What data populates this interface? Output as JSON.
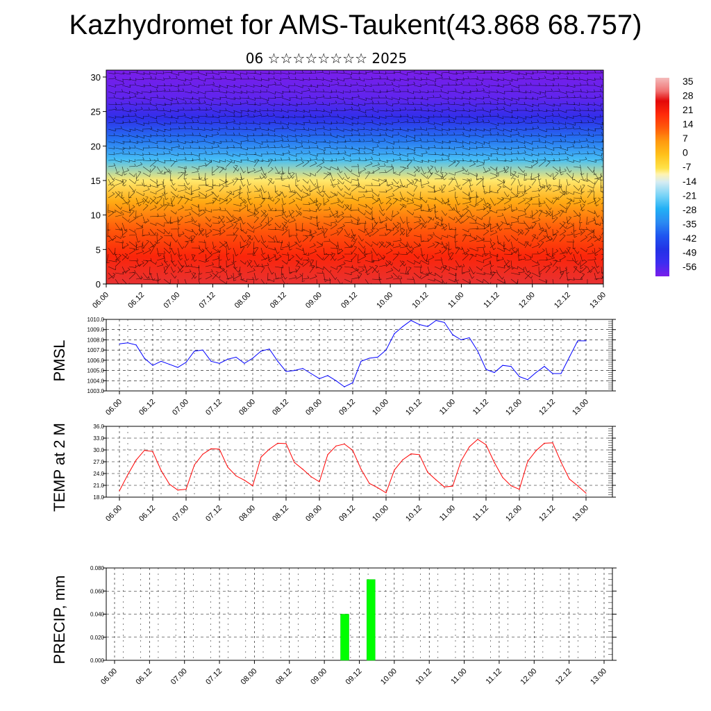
{
  "title": "Kazhydromet for AMS-Taukent(43.868 68.757)",
  "subtitle": "06 ☆☆☆☆☆☆☆☆ 2025",
  "colors": {
    "pmsl_line": "#0000ff",
    "temp_line": "#ff0000",
    "precip_bar": "#00ff00"
  },
  "chart_data": [
    {
      "type": "heatmap",
      "name": "cross-section",
      "title": "",
      "xlabel": "",
      "ylabel": "",
      "x_ticks": [
        "06.00",
        "06.12",
        "07.00",
        "07.12",
        "08.00",
        "08.12",
        "09.00",
        "09.12",
        "10.00",
        "10.12",
        "11.00",
        "11.12",
        "12.00",
        "12.12",
        "13.00"
      ],
      "y_ticks": [
        0,
        5,
        10,
        15,
        20,
        25,
        30
      ],
      "ylim": [
        0,
        31
      ],
      "overlay": "wind barbs",
      "colorbar_labels": [
        "35",
        "28",
        "21",
        "14",
        "7",
        "0",
        "-7",
        "-14",
        "-21",
        "-28",
        "-35",
        "-42",
        "-49",
        "-56"
      ],
      "colorbar_range": [
        -63,
        40
      ],
      "temperature_profile": [
        {
          "level": 0,
          "value": 30
        },
        {
          "level": 4,
          "value": 22
        },
        {
          "level": 8,
          "value": 14
        },
        {
          "level": 12,
          "value": 4
        },
        {
          "level": 15,
          "value": -8
        },
        {
          "level": 18,
          "value": -25
        },
        {
          "level": 21,
          "value": -38
        },
        {
          "level": 24,
          "value": -52
        },
        {
          "level": 27,
          "value": -60
        },
        {
          "level": 31,
          "value": -63
        }
      ]
    },
    {
      "type": "line",
      "name": "PMSL",
      "ylabel": "PMSL",
      "ylim": [
        1003.0,
        1010.0
      ],
      "y_ticks": [
        "1003.0",
        "1004.0",
        "1005.0",
        "1006.0",
        "1007.0",
        "1008.0",
        "1009.0",
        "1010.0"
      ],
      "x_ticks": [
        "06.00",
        "06.12",
        "07.00",
        "07.12",
        "08.00",
        "08.12",
        "09.00",
        "09.12",
        "10.00",
        "10.12",
        "11.00",
        "11.12",
        "12.00",
        "12.12",
        "13.00"
      ],
      "x_hours": [
        0,
        3,
        6,
        9,
        12,
        15,
        18,
        21,
        24,
        27,
        30,
        33,
        36,
        39,
        42,
        45,
        48,
        51,
        54,
        57,
        60,
        63,
        66,
        69,
        72,
        75,
        78,
        81,
        84,
        87,
        90,
        93,
        96,
        99,
        102,
        105,
        108,
        111,
        114,
        117,
        120,
        123,
        126,
        129,
        132,
        135,
        138,
        141,
        144,
        147,
        150,
        153,
        156,
        159,
        162,
        165,
        168
      ],
      "values": [
        1007.6,
        1007.7,
        1007.5,
        1006.2,
        1005.5,
        1005.9,
        1005.6,
        1005.3,
        1005.8,
        1006.9,
        1007.0,
        1005.9,
        1005.7,
        1006.1,
        1006.3,
        1005.7,
        1006.2,
        1006.9,
        1007.1,
        1005.9,
        1004.9,
        1005.0,
        1005.2,
        1004.7,
        1004.2,
        1004.5,
        1004.0,
        1003.4,
        1003.8,
        1005.9,
        1006.2,
        1006.3,
        1007.0,
        1008.6,
        1009.3,
        1009.9,
        1009.5,
        1009.3,
        1009.9,
        1009.7,
        1008.5,
        1008.0,
        1008.2,
        1006.9,
        1005.1,
        1004.8,
        1005.5,
        1005.4,
        1004.4,
        1004.1,
        1004.8,
        1005.4,
        1004.7,
        1004.7,
        1006.3,
        1007.9,
        1007.9
      ]
    },
    {
      "type": "line",
      "name": "TEMP at 2 M",
      "ylabel": "TEMP at 2 M",
      "ylim": [
        18.0,
        36.0
      ],
      "y_ticks": [
        "18.0",
        "21.0",
        "24.0",
        "27.0",
        "30.0",
        "33.0",
        "36.0"
      ],
      "x_ticks": [
        "06.00",
        "06.12",
        "07.00",
        "07.12",
        "08.00",
        "08.12",
        "09.00",
        "09.12",
        "10.00",
        "10.12",
        "11.00",
        "11.12",
        "12.00",
        "12.12",
        "13.00"
      ],
      "x_hours": [
        0,
        3,
        6,
        9,
        12,
        15,
        18,
        21,
        24,
        27,
        30,
        33,
        36,
        39,
        42,
        45,
        48,
        51,
        54,
        57,
        60,
        63,
        66,
        69,
        72,
        75,
        78,
        81,
        84,
        87,
        90,
        93,
        96,
        99,
        102,
        105,
        108,
        111,
        114,
        117,
        120,
        123,
        126,
        129,
        132,
        135,
        138,
        141,
        144,
        147,
        150,
        153,
        156,
        159,
        162,
        165,
        168
      ],
      "values": [
        19.6,
        23.7,
        27.4,
        29.9,
        29.6,
        24.8,
        21.3,
        19.8,
        20.0,
        26.2,
        28.9,
        30.3,
        30.2,
        25.6,
        23.4,
        22.3,
        20.9,
        28.2,
        30.2,
        31.7,
        31.6,
        26.8,
        25.1,
        23.2,
        21.9,
        28.8,
        31.0,
        31.5,
        29.9,
        25.1,
        21.5,
        20.4,
        19.1,
        24.9,
        27.5,
        29.0,
        28.8,
        24.3,
        22.4,
        20.6,
        20.8,
        27.2,
        30.8,
        32.7,
        31.3,
        26.8,
        23.0,
        20.9,
        20.0,
        27.1,
        29.8,
        31.7,
        31.8,
        26.9,
        22.6,
        20.9,
        19.0
      ]
    },
    {
      "type": "bar",
      "name": "PRECIP",
      "ylabel": "PRECIP, mm",
      "ylim": [
        0.0,
        0.08
      ],
      "y_ticks": [
        "0.000",
        "0.020",
        "0.040",
        "0.060",
        "0.080"
      ],
      "x_ticks": [
        "06.00",
        "06.12",
        "07.00",
        "07.12",
        "08.00",
        "08.12",
        "09.00",
        "09.12",
        "10.00",
        "10.12",
        "11.00",
        "11.12",
        "12.00",
        "12.12",
        "13.00"
      ],
      "bars": [
        {
          "x_hour": 79,
          "value": 0.04
        },
        {
          "x_hour": 88,
          "value": 0.07
        }
      ]
    }
  ]
}
